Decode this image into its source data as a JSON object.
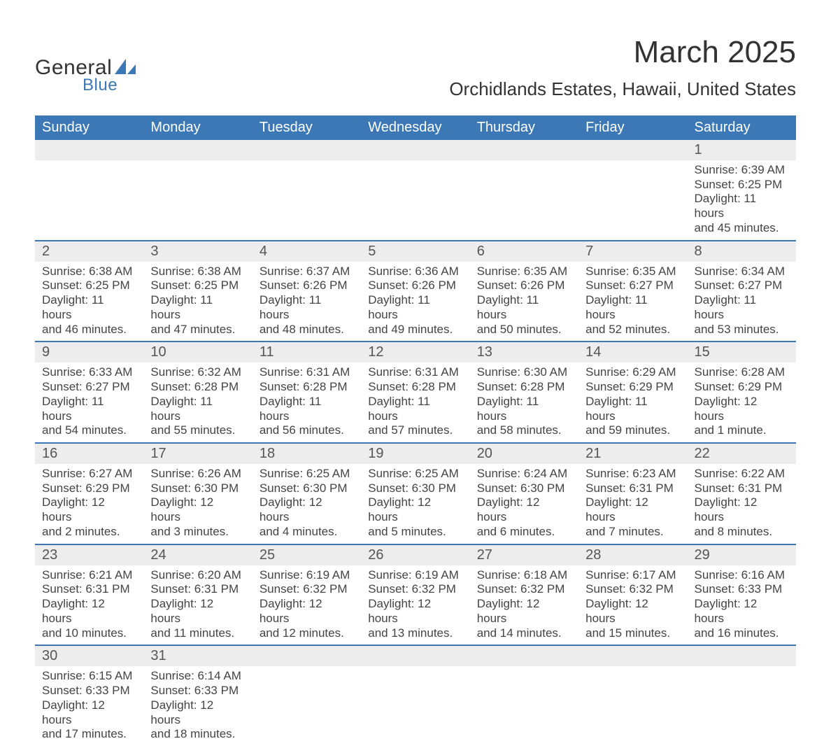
{
  "logo": {
    "general": "General",
    "blue": "Blue",
    "shape_color": "#3b78b5"
  },
  "title": {
    "month": "March 2025",
    "location": "Orchidlands Estates, Hawaii, United States"
  },
  "colors": {
    "header_bg": "#3b78b5",
    "header_text": "#ffffff",
    "daynum_bg": "#ededed",
    "row_divider": "#3b78b5",
    "text": "#333333",
    "detail_text": "#444444"
  },
  "typography": {
    "month_title_fontsize": 44,
    "location_fontsize": 26,
    "weekday_fontsize": 20,
    "daynum_fontsize": 20,
    "detail_fontsize": 17
  },
  "calendar": {
    "type": "table",
    "weekdays": [
      "Sunday",
      "Monday",
      "Tuesday",
      "Wednesday",
      "Thursday",
      "Friday",
      "Saturday"
    ],
    "weeks": [
      [
        null,
        null,
        null,
        null,
        null,
        null,
        {
          "day": "1",
          "sunrise": "Sunrise: 6:39 AM",
          "sunset": "Sunset: 6:25 PM",
          "daylight1": "Daylight: 11 hours",
          "daylight2": "and 45 minutes."
        }
      ],
      [
        {
          "day": "2",
          "sunrise": "Sunrise: 6:38 AM",
          "sunset": "Sunset: 6:25 PM",
          "daylight1": "Daylight: 11 hours",
          "daylight2": "and 46 minutes."
        },
        {
          "day": "3",
          "sunrise": "Sunrise: 6:38 AM",
          "sunset": "Sunset: 6:25 PM",
          "daylight1": "Daylight: 11 hours",
          "daylight2": "and 47 minutes."
        },
        {
          "day": "4",
          "sunrise": "Sunrise: 6:37 AM",
          "sunset": "Sunset: 6:26 PM",
          "daylight1": "Daylight: 11 hours",
          "daylight2": "and 48 minutes."
        },
        {
          "day": "5",
          "sunrise": "Sunrise: 6:36 AM",
          "sunset": "Sunset: 6:26 PM",
          "daylight1": "Daylight: 11 hours",
          "daylight2": "and 49 minutes."
        },
        {
          "day": "6",
          "sunrise": "Sunrise: 6:35 AM",
          "sunset": "Sunset: 6:26 PM",
          "daylight1": "Daylight: 11 hours",
          "daylight2": "and 50 minutes."
        },
        {
          "day": "7",
          "sunrise": "Sunrise: 6:35 AM",
          "sunset": "Sunset: 6:27 PM",
          "daylight1": "Daylight: 11 hours",
          "daylight2": "and 52 minutes."
        },
        {
          "day": "8",
          "sunrise": "Sunrise: 6:34 AM",
          "sunset": "Sunset: 6:27 PM",
          "daylight1": "Daylight: 11 hours",
          "daylight2": "and 53 minutes."
        }
      ],
      [
        {
          "day": "9",
          "sunrise": "Sunrise: 6:33 AM",
          "sunset": "Sunset: 6:27 PM",
          "daylight1": "Daylight: 11 hours",
          "daylight2": "and 54 minutes."
        },
        {
          "day": "10",
          "sunrise": "Sunrise: 6:32 AM",
          "sunset": "Sunset: 6:28 PM",
          "daylight1": "Daylight: 11 hours",
          "daylight2": "and 55 minutes."
        },
        {
          "day": "11",
          "sunrise": "Sunrise: 6:31 AM",
          "sunset": "Sunset: 6:28 PM",
          "daylight1": "Daylight: 11 hours",
          "daylight2": "and 56 minutes."
        },
        {
          "day": "12",
          "sunrise": "Sunrise: 6:31 AM",
          "sunset": "Sunset: 6:28 PM",
          "daylight1": "Daylight: 11 hours",
          "daylight2": "and 57 minutes."
        },
        {
          "day": "13",
          "sunrise": "Sunrise: 6:30 AM",
          "sunset": "Sunset: 6:28 PM",
          "daylight1": "Daylight: 11 hours",
          "daylight2": "and 58 minutes."
        },
        {
          "day": "14",
          "sunrise": "Sunrise: 6:29 AM",
          "sunset": "Sunset: 6:29 PM",
          "daylight1": "Daylight: 11 hours",
          "daylight2": "and 59 minutes."
        },
        {
          "day": "15",
          "sunrise": "Sunrise: 6:28 AM",
          "sunset": "Sunset: 6:29 PM",
          "daylight1": "Daylight: 12 hours",
          "daylight2": "and 1 minute."
        }
      ],
      [
        {
          "day": "16",
          "sunrise": "Sunrise: 6:27 AM",
          "sunset": "Sunset: 6:29 PM",
          "daylight1": "Daylight: 12 hours",
          "daylight2": "and 2 minutes."
        },
        {
          "day": "17",
          "sunrise": "Sunrise: 6:26 AM",
          "sunset": "Sunset: 6:30 PM",
          "daylight1": "Daylight: 12 hours",
          "daylight2": "and 3 minutes."
        },
        {
          "day": "18",
          "sunrise": "Sunrise: 6:25 AM",
          "sunset": "Sunset: 6:30 PM",
          "daylight1": "Daylight: 12 hours",
          "daylight2": "and 4 minutes."
        },
        {
          "day": "19",
          "sunrise": "Sunrise: 6:25 AM",
          "sunset": "Sunset: 6:30 PM",
          "daylight1": "Daylight: 12 hours",
          "daylight2": "and 5 minutes."
        },
        {
          "day": "20",
          "sunrise": "Sunrise: 6:24 AM",
          "sunset": "Sunset: 6:30 PM",
          "daylight1": "Daylight: 12 hours",
          "daylight2": "and 6 minutes."
        },
        {
          "day": "21",
          "sunrise": "Sunrise: 6:23 AM",
          "sunset": "Sunset: 6:31 PM",
          "daylight1": "Daylight: 12 hours",
          "daylight2": "and 7 minutes."
        },
        {
          "day": "22",
          "sunrise": "Sunrise: 6:22 AM",
          "sunset": "Sunset: 6:31 PM",
          "daylight1": "Daylight: 12 hours",
          "daylight2": "and 8 minutes."
        }
      ],
      [
        {
          "day": "23",
          "sunrise": "Sunrise: 6:21 AM",
          "sunset": "Sunset: 6:31 PM",
          "daylight1": "Daylight: 12 hours",
          "daylight2": "and 10 minutes."
        },
        {
          "day": "24",
          "sunrise": "Sunrise: 6:20 AM",
          "sunset": "Sunset: 6:31 PM",
          "daylight1": "Daylight: 12 hours",
          "daylight2": "and 11 minutes."
        },
        {
          "day": "25",
          "sunrise": "Sunrise: 6:19 AM",
          "sunset": "Sunset: 6:32 PM",
          "daylight1": "Daylight: 12 hours",
          "daylight2": "and 12 minutes."
        },
        {
          "day": "26",
          "sunrise": "Sunrise: 6:19 AM",
          "sunset": "Sunset: 6:32 PM",
          "daylight1": "Daylight: 12 hours",
          "daylight2": "and 13 minutes."
        },
        {
          "day": "27",
          "sunrise": "Sunrise: 6:18 AM",
          "sunset": "Sunset: 6:32 PM",
          "daylight1": "Daylight: 12 hours",
          "daylight2": "and 14 minutes."
        },
        {
          "day": "28",
          "sunrise": "Sunrise: 6:17 AM",
          "sunset": "Sunset: 6:32 PM",
          "daylight1": "Daylight: 12 hours",
          "daylight2": "and 15 minutes."
        },
        {
          "day": "29",
          "sunrise": "Sunrise: 6:16 AM",
          "sunset": "Sunset: 6:33 PM",
          "daylight1": "Daylight: 12 hours",
          "daylight2": "and 16 minutes."
        }
      ],
      [
        {
          "day": "30",
          "sunrise": "Sunrise: 6:15 AM",
          "sunset": "Sunset: 6:33 PM",
          "daylight1": "Daylight: 12 hours",
          "daylight2": "and 17 minutes."
        },
        {
          "day": "31",
          "sunrise": "Sunrise: 6:14 AM",
          "sunset": "Sunset: 6:33 PM",
          "daylight1": "Daylight: 12 hours",
          "daylight2": "and 18 minutes."
        },
        null,
        null,
        null,
        null,
        null
      ]
    ]
  }
}
